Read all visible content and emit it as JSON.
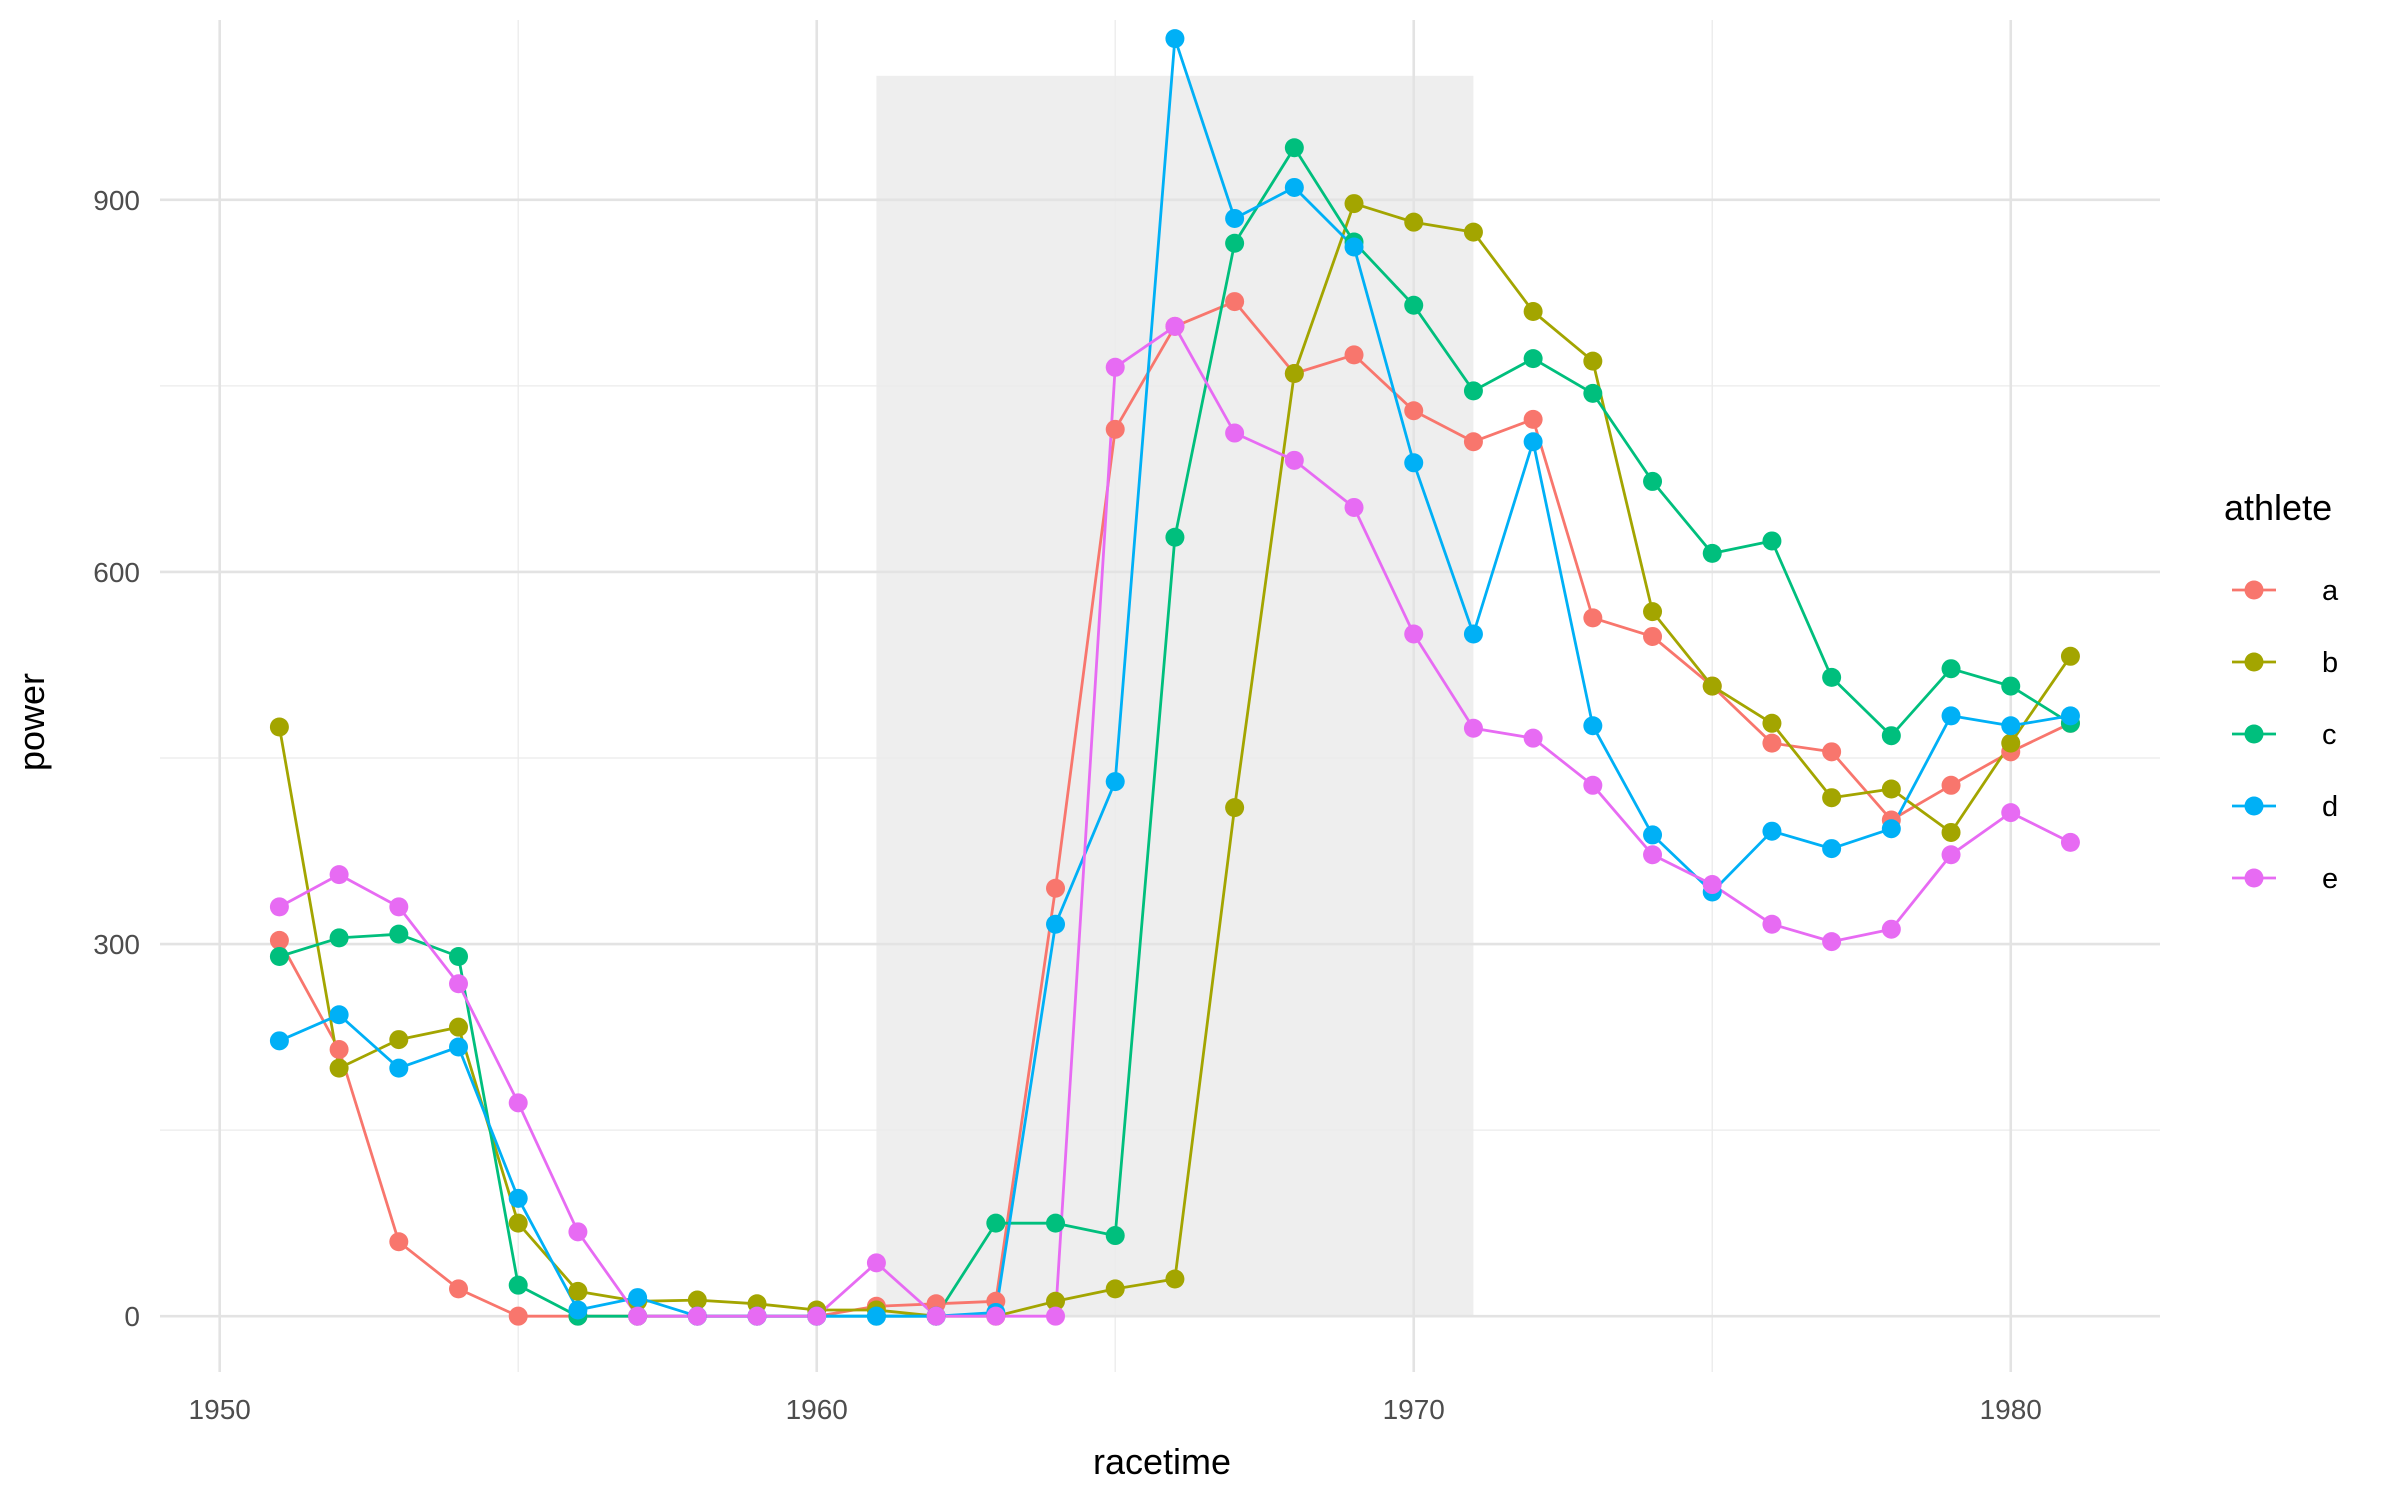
{
  "chart_data": {
    "type": "line",
    "xlabel": "racetime",
    "ylabel": "power",
    "xlim": [
      1949.0,
      1982.5
    ],
    "ylim": [
      -45,
      1045
    ],
    "x_ticks": [
      1950,
      1960,
      1970,
      1980
    ],
    "y_ticks": [
      0,
      300,
      600,
      900
    ],
    "x_tick_labels": [
      "1950",
      "1960",
      "1970",
      "1980"
    ],
    "y_tick_labels": [
      "0",
      "300",
      "600",
      "900"
    ],
    "grid": true,
    "highlight_region": {
      "x": [
        1961,
        1971
      ],
      "y": [
        0,
        1000
      ],
      "color": "#ebebeb"
    },
    "legend": {
      "title": "athlete",
      "position": "right"
    },
    "x": [
      1951,
      1952,
      1953,
      1954,
      1955,
      1956,
      1957,
      1958,
      1959,
      1960,
      1961,
      1962,
      1963,
      1964,
      1965,
      1966,
      1967,
      1968,
      1969,
      1970,
      1971,
      1972,
      1973,
      1974,
      1975,
      1976,
      1977,
      1978,
      1979,
      1980,
      1981
    ],
    "series": [
      {
        "name": "a",
        "color": "#F8766D",
        "values": [
          303,
          215,
          60,
          22,
          0,
          0,
          0,
          0,
          0,
          0,
          8,
          10,
          12,
          345,
          715,
          798,
          818,
          760,
          775,
          730,
          705,
          723,
          563,
          548,
          508,
          462,
          455,
          400,
          428,
          455,
          478
        ]
      },
      {
        "name": "b",
        "color": "#A3A500",
        "values": [
          475,
          200,
          223,
          233,
          75,
          20,
          12,
          13,
          10,
          5,
          5,
          0,
          0,
          12,
          22,
          30,
          410,
          760,
          897,
          882,
          874,
          810,
          770,
          568,
          508,
          478,
          418,
          425,
          390,
          462,
          532
        ]
      },
      {
        "name": "c",
        "color": "#00BF7D",
        "values": [
          290,
          305,
          308,
          290,
          25,
          0,
          0,
          0,
          0,
          0,
          0,
          0,
          75,
          75,
          65,
          628,
          865,
          942,
          866,
          815,
          746,
          772,
          744,
          673,
          615,
          625,
          515,
          468,
          522,
          508,
          478
        ]
      },
      {
        "name": "d",
        "color": "#00B0F6",
        "values": [
          222,
          243,
          200,
          217,
          95,
          5,
          15,
          0,
          0,
          0,
          0,
          0,
          3,
          316,
          431,
          1030,
          885,
          910,
          862,
          688,
          550,
          705,
          476,
          388,
          342,
          391,
          377,
          393,
          484,
          476,
          484
        ]
      },
      {
        "name": "e",
        "color": "#E76BF3",
        "values": [
          330,
          356,
          330,
          268,
          172,
          68,
          0,
          0,
          0,
          0,
          43,
          0,
          0,
          0,
          765,
          798,
          712,
          690,
          652,
          550,
          474,
          466,
          428,
          372,
          348,
          316,
          302,
          312,
          372,
          406,
          382
        ]
      }
    ]
  }
}
